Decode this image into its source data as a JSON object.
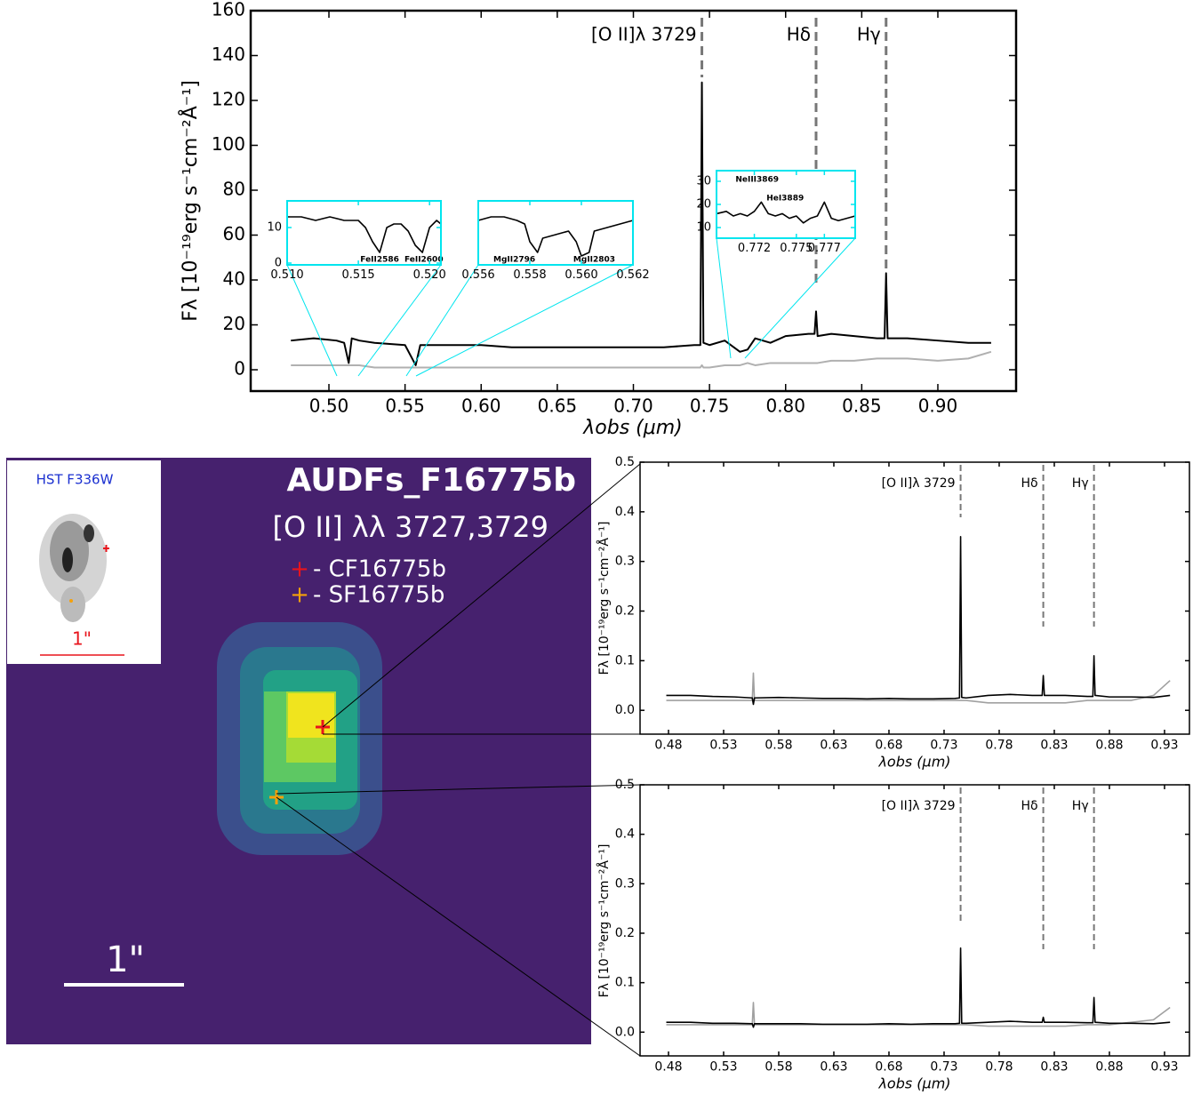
{
  "chart_data": [
    {
      "type": "line",
      "xlabel": "λobs (μm)",
      "ylabel": "Fλ [10⁻¹⁹erg s⁻¹cm⁻²Å⁻¹]",
      "xlim": [
        0.4486,
        0.9514
      ],
      "ylim": [
        -9.5,
        160
      ],
      "xticks": [
        {
          "value": 0.5,
          "label": "0.50"
        },
        0.55,
        {
          "value": 0.6,
          "label": "0.60"
        },
        0.65,
        {
          "value": 0.7,
          "label": "0.70"
        },
        0.75,
        {
          "value": 0.8,
          "label": "0.80"
        },
        0.85,
        {
          "value": 0.9,
          "label": "0.90"
        }
      ],
      "yticks": [
        0,
        20,
        40,
        60,
        80,
        100,
        120,
        140,
        160
      ],
      "x": [
        0.475,
        0.49,
        0.505,
        0.51,
        0.513,
        0.515,
        0.52,
        0.53,
        0.55,
        0.557,
        0.56,
        0.58,
        0.6,
        0.62,
        0.64,
        0.66,
        0.68,
        0.7,
        0.72,
        0.74,
        0.744,
        0.745,
        0.746,
        0.75,
        0.76,
        0.77,
        0.775,
        0.78,
        0.79,
        0.8,
        0.815,
        0.819,
        0.82,
        0.821,
        0.83,
        0.845,
        0.86,
        0.865,
        0.866,
        0.867,
        0.88,
        0.9,
        0.92,
        0.935
      ],
      "series": [
        {
          "color": "#b0b0b0",
          "values": [
            2,
            2,
            2,
            2,
            2,
            2,
            2,
            1,
            1,
            1,
            1,
            1,
            1,
            1,
            1,
            1,
            1,
            1,
            1,
            1,
            1,
            2,
            1,
            1,
            2,
            2,
            3,
            2,
            3,
            3,
            3,
            3,
            3,
            3,
            4,
            4,
            5,
            5,
            5,
            5,
            5,
            4,
            5,
            8
          ]
        },
        {
          "color": "#000000",
          "values": [
            13,
            14,
            13,
            12,
            3,
            14,
            13,
            12,
            11,
            2,
            11,
            11,
            11,
            10,
            10,
            10,
            10,
            10,
            10,
            11,
            11,
            128,
            12,
            11,
            13,
            8,
            9,
            14,
            12,
            15,
            16,
            16,
            26,
            15,
            16,
            15,
            14,
            14,
            43,
            14,
            14,
            13,
            12,
            12
          ]
        }
      ],
      "lines": [
        {
          "label": "[O II]λ 3729",
          "x": 0.745
        },
        {
          "label": "Hδ",
          "x": 0.82
        },
        {
          "label": "Hγ",
          "x": 0.866
        }
      ]
    },
    {
      "type": "line",
      "xlim": [
        0.51,
        0.5208
      ],
      "ylim": [
        -0.5,
        17.5
      ],
      "xticks": [
        {
          "value": 0.51,
          "label": "0.510"
        },
        0.515,
        {
          "value": 0.52,
          "label": "0.520"
        }
      ],
      "yticks": [
        0,
        10
      ],
      "x": [
        0.51,
        0.511,
        0.512,
        0.513,
        0.514,
        0.515,
        0.5155,
        0.516,
        0.5165,
        0.517,
        0.5175,
        0.518,
        0.5185,
        0.519,
        0.5195,
        0.52,
        0.5205,
        0.5208
      ],
      "series": [
        {
          "color": "#000000",
          "values": [
            13,
            13,
            12,
            13,
            12,
            12,
            10,
            6,
            3,
            10,
            11,
            11,
            9,
            5,
            3,
            10,
            12,
            11
          ]
        }
      ],
      "annotations": [
        "FeII2586",
        "FeII2600"
      ]
    },
    {
      "type": "line",
      "xlim": [
        0.556,
        0.562
      ],
      "ylim": [
        -0.5,
        17.5
      ],
      "xticks": [
        0.556,
        0.558,
        {
          "value": 0.56,
          "label": "0.560"
        },
        0.562
      ],
      "yticks": [],
      "x": [
        0.556,
        0.5565,
        0.557,
        0.5575,
        0.5578,
        0.558,
        0.5583,
        0.5585,
        0.559,
        0.5595,
        0.5598,
        0.56,
        0.5603,
        0.5605,
        0.561,
        0.5615,
        0.562
      ],
      "series": [
        {
          "color": "#000000",
          "values": [
            12,
            13,
            13,
            12,
            11,
            6,
            3,
            7,
            8,
            9,
            6,
            2,
            3,
            9,
            10,
            11,
            12
          ]
        }
      ],
      "annotations": [
        "MgII2796",
        "MgII2803"
      ]
    },
    {
      "type": "line",
      "xlim": [
        0.7693,
        0.7792
      ],
      "ylim": [
        5.4,
        34.6
      ],
      "xticks": [
        0.772,
        0.775,
        0.777
      ],
      "yticks": [
        10,
        20,
        30
      ],
      "x": [
        0.7693,
        0.77,
        0.7705,
        0.771,
        0.7715,
        0.772,
        0.7725,
        0.773,
        0.7735,
        0.774,
        0.7745,
        0.775,
        0.7755,
        0.776,
        0.7765,
        0.777,
        0.7775,
        0.778,
        0.7792
      ],
      "series": [
        {
          "color": "#000000",
          "values": [
            16,
            17,
            15,
            16,
            15,
            17,
            21,
            16,
            15,
            16,
            14,
            15,
            12,
            14,
            15,
            21,
            14,
            13,
            15
          ]
        }
      ],
      "annotations": [
        "NeIII3869",
        "HeI3889"
      ]
    },
    {
      "type": "line",
      "xlabel": "λobs (μm)",
      "ylabel": "Fλ [10⁻¹⁹erg s⁻¹cm⁻²Å⁻¹]",
      "xlim": [
        0.4542,
        0.9526
      ],
      "ylim": [
        -0.048,
        0.5
      ],
      "xticks": [
        0.48,
        0.53,
        0.58,
        0.63,
        0.68,
        0.73,
        0.78,
        0.83,
        0.88,
        0.93
      ],
      "yticks": [
        {
          "value": 0,
          "label": "0.0"
        },
        0.1,
        0.2,
        0.3,
        0.4,
        0.5
      ],
      "x": [
        0.478,
        0.5,
        0.52,
        0.54,
        0.556,
        0.557,
        0.558,
        0.58,
        0.6,
        0.62,
        0.64,
        0.66,
        0.68,
        0.7,
        0.72,
        0.74,
        0.744,
        0.745,
        0.746,
        0.75,
        0.77,
        0.79,
        0.81,
        0.819,
        0.82,
        0.821,
        0.84,
        0.86,
        0.865,
        0.866,
        0.867,
        0.88,
        0.9,
        0.92,
        0.935
      ],
      "series": [
        {
          "color": "#a0a0a0",
          "values": [
            0.02,
            0.02,
            0.02,
            0.02,
            0.02,
            0.075,
            0.02,
            0.02,
            0.02,
            0.02,
            0.02,
            0.02,
            0.02,
            0.02,
            0.02,
            0.02,
            0.02,
            0.02,
            0.02,
            0.02,
            0.015,
            0.015,
            0.015,
            0.015,
            0.015,
            0.015,
            0.015,
            0.02,
            0.02,
            0.02,
            0.02,
            0.02,
            0.02,
            0.03,
            0.06
          ]
        },
        {
          "color": "#000000",
          "values": [
            0.03,
            0.03,
            0.028,
            0.027,
            0.025,
            0.012,
            0.025,
            0.026,
            0.025,
            0.024,
            0.024,
            0.023,
            0.024,
            0.023,
            0.023,
            0.024,
            0.025,
            0.35,
            0.026,
            0.025,
            0.03,
            0.032,
            0.03,
            0.03,
            0.07,
            0.03,
            0.03,
            0.028,
            0.028,
            0.11,
            0.03,
            0.027,
            0.027,
            0.026,
            0.03
          ]
        }
      ],
      "lines": [
        {
          "label": "[O II]λ 3729",
          "x": 0.745
        },
        {
          "label": "Hδ",
          "x": 0.82
        },
        {
          "label": "Hγ",
          "x": 0.866
        }
      ]
    },
    {
      "type": "line",
      "xlabel": "λobs (μm)",
      "ylabel": "Fλ [10⁻¹⁹erg s⁻¹cm⁻²Å⁻¹]",
      "xlim": [
        0.4542,
        0.9526
      ],
      "ylim": [
        -0.048,
        0.5
      ],
      "xticks": [
        0.48,
        0.53,
        0.58,
        0.63,
        0.68,
        0.73,
        0.78,
        0.83,
        0.88,
        0.93
      ],
      "yticks": [
        {
          "value": 0,
          "label": "0.0"
        },
        0.1,
        0.2,
        0.3,
        0.4,
        0.5
      ],
      "x": [
        0.478,
        0.5,
        0.52,
        0.54,
        0.556,
        0.557,
        0.558,
        0.58,
        0.6,
        0.62,
        0.64,
        0.66,
        0.68,
        0.7,
        0.72,
        0.74,
        0.744,
        0.745,
        0.746,
        0.75,
        0.77,
        0.79,
        0.81,
        0.819,
        0.82,
        0.821,
        0.84,
        0.86,
        0.865,
        0.866,
        0.867,
        0.88,
        0.9,
        0.92,
        0.935
      ],
      "series": [
        {
          "color": "#a0a0a0",
          "values": [
            0.015,
            0.015,
            0.015,
            0.015,
            0.015,
            0.06,
            0.015,
            0.015,
            0.015,
            0.015,
            0.015,
            0.015,
            0.015,
            0.015,
            0.015,
            0.015,
            0.015,
            0.015,
            0.015,
            0.015,
            0.012,
            0.012,
            0.012,
            0.012,
            0.012,
            0.012,
            0.012,
            0.015,
            0.015,
            0.015,
            0.015,
            0.015,
            0.02,
            0.025,
            0.05
          ]
        },
        {
          "color": "#000000",
          "values": [
            0.02,
            0.02,
            0.018,
            0.018,
            0.017,
            0.01,
            0.017,
            0.017,
            0.017,
            0.016,
            0.016,
            0.016,
            0.017,
            0.016,
            0.017,
            0.017,
            0.018,
            0.17,
            0.018,
            0.018,
            0.02,
            0.022,
            0.02,
            0.02,
            0.03,
            0.02,
            0.02,
            0.019,
            0.019,
            0.07,
            0.02,
            0.018,
            0.018,
            0.017,
            0.02
          ]
        }
      ],
      "lines": [
        {
          "label": "[O II]λ 3729",
          "x": 0.745
        },
        {
          "label": "Hδ",
          "x": 0.82
        },
        {
          "label": "Hγ",
          "x": 0.866
        }
      ]
    }
  ],
  "image": {
    "title": "AUDFs_F16775b",
    "subtitle": "[O II] λλ 3727,3729",
    "markers": [
      {
        "symbol": "+",
        "label": "- CF16775b"
      },
      {
        "symbol": "+",
        "label": "- SF16775b"
      }
    ],
    "scale": "1\"",
    "inset_title": "HST F336W",
    "inset_scale": "1\""
  }
}
